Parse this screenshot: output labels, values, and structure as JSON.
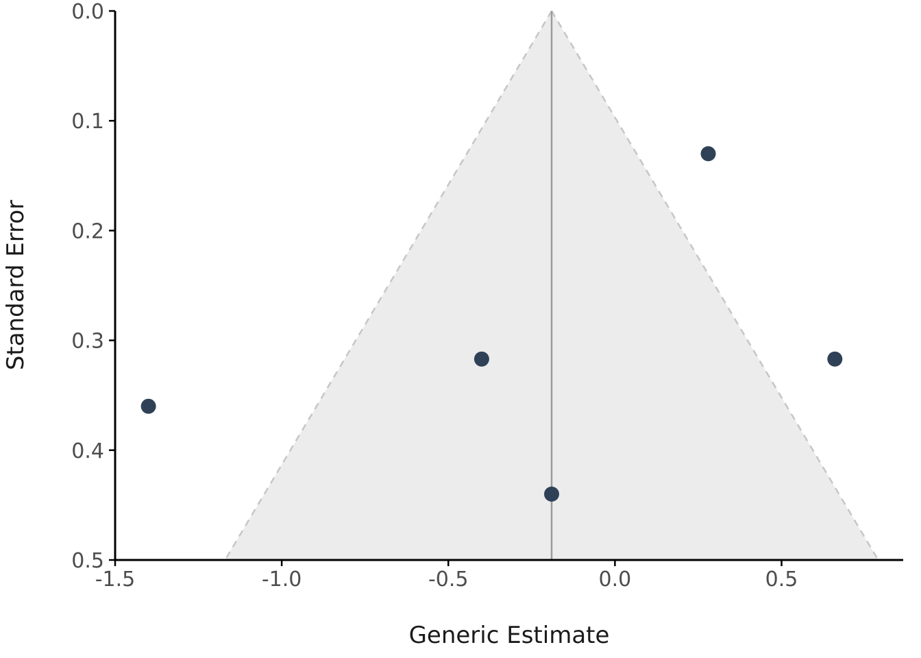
{
  "chart_data": {
    "type": "scatter",
    "subtype": "funnel-plot",
    "title": "",
    "xlabel": "Generic Estimate",
    "ylabel": "Standard Error",
    "xlim": [
      -1.5,
      0.865
    ],
    "ylim": [
      0.0,
      0.5
    ],
    "y_axis_inverted": true,
    "grid": false,
    "legend": "none",
    "x_ticks": [
      {
        "value": -1.5,
        "label": "-1.5"
      },
      {
        "value": -1.0,
        "label": "-1.0"
      },
      {
        "value": -0.5,
        "label": "-0.5"
      },
      {
        "value": 0.0,
        "label": "0.0"
      },
      {
        "value": 0.5,
        "label": "0.5"
      }
    ],
    "y_ticks": [
      {
        "value": 0.0,
        "label": "0.0"
      },
      {
        "value": 0.1,
        "label": "0.1"
      },
      {
        "value": 0.2,
        "label": "0.2"
      },
      {
        "value": 0.3,
        "label": "0.3"
      },
      {
        "value": 0.4,
        "label": "0.4"
      },
      {
        "value": 0.5,
        "label": "0.5"
      }
    ],
    "points": [
      {
        "x": -1.4,
        "y": 0.36
      },
      {
        "x": -0.4,
        "y": 0.317
      },
      {
        "x": -0.19,
        "y": 0.44
      },
      {
        "x": 0.28,
        "y": 0.13
      },
      {
        "x": 0.66,
        "y": 0.317
      }
    ],
    "funnel": {
      "pooled_estimate": -0.19,
      "apex_se": 0.0,
      "base_se": 0.5,
      "ci_z": 1.96,
      "left_base_x": -1.17,
      "right_base_x": 0.79
    },
    "point_radius": 11,
    "colors": {
      "background": "#ffffff",
      "point": "#2f4156",
      "funnel_fill": "#ececec",
      "funnel_edge": "#c6c6c6",
      "center_line": "#9b9b9b",
      "axis_line": "#000000",
      "tick_label": "#4d4d4d",
      "axis_title": "#1a1a1a"
    }
  }
}
